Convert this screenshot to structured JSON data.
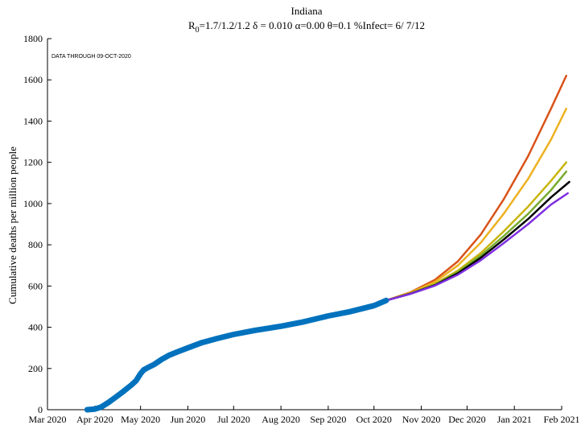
{
  "chart_data": {
    "type": "line",
    "title": "Indiana",
    "subtitle": {
      "r_label": "R",
      "r_sub": "0",
      "rest": "=1.7/1.2/1.2  δ = 0.010  α=0.00  θ=0.1  %Infect= 6/ 7/12"
    },
    "xlabel": "",
    "ylabel": "Cumulative deaths per million people",
    "annotation": "DATA THROUGH 09-OCT-2020",
    "ylim": [
      0,
      1800
    ],
    "yticks": [
      0,
      200,
      400,
      600,
      800,
      1000,
      1200,
      1400,
      1600,
      1800
    ],
    "xlim": [
      "2020-03-01",
      "2021-02-01"
    ],
    "xticks": [
      {
        "date": "2020-03-01",
        "label": "Mar 2020"
      },
      {
        "date": "2020-04-01",
        "label": "Apr 2020"
      },
      {
        "date": "2020-05-01",
        "label": "May 2020"
      },
      {
        "date": "2020-06-01",
        "label": "Jun 2020"
      },
      {
        "date": "2020-07-01",
        "label": "Jul 2020"
      },
      {
        "date": "2020-08-01",
        "label": "Aug 2020"
      },
      {
        "date": "2020-09-01",
        "label": "Sep 2020"
      },
      {
        "date": "2020-10-01",
        "label": "Oct 2020"
      },
      {
        "date": "2020-11-01",
        "label": "Nov 2020"
      },
      {
        "date": "2020-12-01",
        "label": "Dec 2020"
      },
      {
        "date": "2021-01-01",
        "label": "Jan 2021"
      },
      {
        "date": "2021-02-01",
        "label": "Feb 2021"
      }
    ],
    "series": [
      {
        "color": "#0072bd",
        "style": "observed",
        "points": [
          [
            "2020-03-27",
            0
          ],
          [
            "2020-04-01",
            3
          ],
          [
            "2020-04-05",
            12
          ],
          [
            "2020-04-10",
            35
          ],
          [
            "2020-04-15",
            62
          ],
          [
            "2020-04-20",
            90
          ],
          [
            "2020-04-25",
            120
          ],
          [
            "2020-04-28",
            140
          ],
          [
            "2020-05-01",
            175
          ],
          [
            "2020-05-03",
            193
          ],
          [
            "2020-05-06",
            205
          ],
          [
            "2020-05-10",
            220
          ],
          [
            "2020-05-15",
            245
          ],
          [
            "2020-05-20",
            265
          ],
          [
            "2020-05-25",
            280
          ],
          [
            "2020-06-01",
            300
          ],
          [
            "2020-06-10",
            325
          ],
          [
            "2020-06-20",
            345
          ],
          [
            "2020-07-01",
            365
          ],
          [
            "2020-07-15",
            385
          ],
          [
            "2020-08-01",
            405
          ],
          [
            "2020-08-15",
            425
          ],
          [
            "2020-09-01",
            455
          ],
          [
            "2020-09-15",
            475
          ],
          [
            "2020-10-01",
            505
          ],
          [
            "2020-10-09",
            530
          ]
        ]
      },
      {
        "color": "#d95319",
        "style": "projection",
        "points": [
          [
            "2020-10-09",
            530
          ],
          [
            "2020-10-25",
            570
          ],
          [
            "2020-11-10",
            630
          ],
          [
            "2020-11-25",
            720
          ],
          [
            "2020-12-10",
            850
          ],
          [
            "2020-12-25",
            1020
          ],
          [
            "2021-01-10",
            1230
          ],
          [
            "2021-01-25",
            1460
          ],
          [
            "2021-02-04",
            1620
          ]
        ]
      },
      {
        "color": "#edb120",
        "style": "projection",
        "points": [
          [
            "2020-10-09",
            530
          ],
          [
            "2020-10-25",
            568
          ],
          [
            "2020-11-10",
            620
          ],
          [
            "2020-11-25",
            700
          ],
          [
            "2020-12-10",
            810
          ],
          [
            "2020-12-25",
            950
          ],
          [
            "2021-01-10",
            1120
          ],
          [
            "2021-01-25",
            1310
          ],
          [
            "2021-02-04",
            1460
          ]
        ]
      },
      {
        "color": "#c9b40c",
        "style": "projection",
        "points": [
          [
            "2020-10-09",
            530
          ],
          [
            "2020-10-25",
            565
          ],
          [
            "2020-11-10",
            610
          ],
          [
            "2020-11-25",
            675
          ],
          [
            "2020-12-10",
            760
          ],
          [
            "2020-12-25",
            865
          ],
          [
            "2021-01-10",
            985
          ],
          [
            "2021-01-25",
            1110
          ],
          [
            "2021-02-04",
            1200
          ]
        ]
      },
      {
        "color": "#77ac30",
        "style": "projection",
        "points": [
          [
            "2020-10-09",
            530
          ],
          [
            "2020-10-25",
            564
          ],
          [
            "2020-11-10",
            607
          ],
          [
            "2020-11-25",
            668
          ],
          [
            "2020-12-10",
            748
          ],
          [
            "2020-12-25",
            842
          ],
          [
            "2021-01-10",
            950
          ],
          [
            "2021-01-25",
            1065
          ],
          [
            "2021-02-04",
            1155
          ]
        ]
      },
      {
        "color": "#000000",
        "style": "projection",
        "points": [
          [
            "2020-10-09",
            530
          ],
          [
            "2020-10-25",
            563
          ],
          [
            "2020-11-10",
            604
          ],
          [
            "2020-11-25",
            662
          ],
          [
            "2020-12-10",
            737
          ],
          [
            "2020-12-25",
            825
          ],
          [
            "2021-01-10",
            925
          ],
          [
            "2021-01-25",
            1030
          ],
          [
            "2021-02-06",
            1105
          ]
        ]
      },
      {
        "color": "#7e2fe0",
        "style": "projection",
        "points": [
          [
            "2020-10-09",
            530
          ],
          [
            "2020-10-25",
            562
          ],
          [
            "2020-11-10",
            602
          ],
          [
            "2020-11-25",
            655
          ],
          [
            "2020-12-10",
            725
          ],
          [
            "2020-12-25",
            808
          ],
          [
            "2021-01-10",
            900
          ],
          [
            "2021-01-25",
            995
          ],
          [
            "2021-02-05",
            1050
          ]
        ]
      }
    ]
  }
}
